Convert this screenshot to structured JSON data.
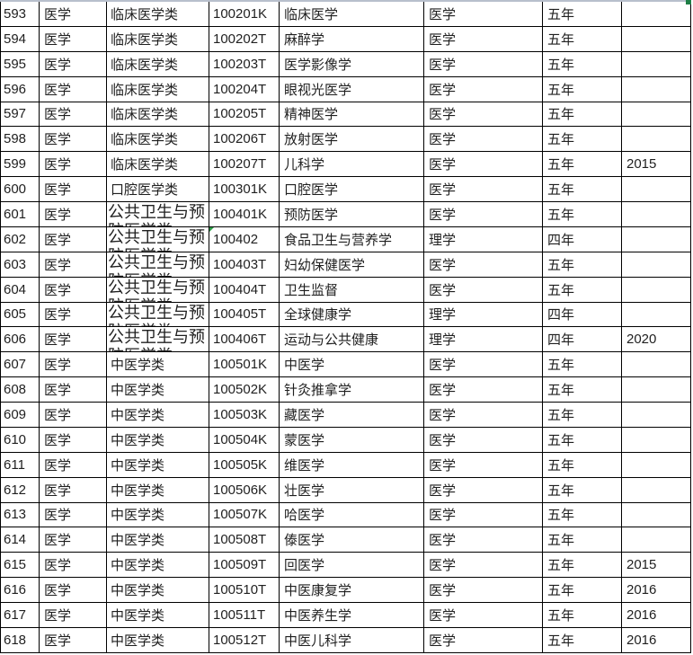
{
  "app": {
    "context": "spreadsheet-grid-excerpt"
  },
  "colors": {
    "background": "#ffffff",
    "grid_line": "#000000",
    "text": "#1f1f1f",
    "selection_edge_line": "#b8bfcc",
    "fill_handle_green": "#1e7e45",
    "error_indicator_green": "#2f9e49"
  },
  "table": {
    "columns": [
      {
        "name": "row-number",
        "width": 43
      },
      {
        "name": "discipline",
        "width": 75
      },
      {
        "name": "category",
        "width": 114
      },
      {
        "name": "major-code",
        "width": 78
      },
      {
        "name": "major-name",
        "width": 161
      },
      {
        "name": "degree-type",
        "width": 132
      },
      {
        "name": "duration",
        "width": 88
      },
      {
        "name": "year-added",
        "width": 77
      }
    ],
    "rows": [
      {
        "num": "593",
        "discipline": "医学",
        "category": "临床医学类",
        "code": "100201K",
        "major": "临床医学",
        "degree": "医学",
        "duration": "五年",
        "year": ""
      },
      {
        "num": "594",
        "discipline": "医学",
        "category": "临床医学类",
        "code": "100202T",
        "major": "麻醉学",
        "degree": "医学",
        "duration": "五年",
        "year": ""
      },
      {
        "num": "595",
        "discipline": "医学",
        "category": "临床医学类",
        "code": "100203T",
        "major": "医学影像学",
        "degree": "医学",
        "duration": "五年",
        "year": ""
      },
      {
        "num": "596",
        "discipline": "医学",
        "category": "临床医学类",
        "code": "100204T",
        "major": "眼视光医学",
        "degree": "医学",
        "duration": "五年",
        "year": ""
      },
      {
        "num": "597",
        "discipline": "医学",
        "category": "临床医学类",
        "code": "100205T",
        "major": "精神医学",
        "degree": "医学",
        "duration": "五年",
        "year": ""
      },
      {
        "num": "598",
        "discipline": "医学",
        "category": "临床医学类",
        "code": "100206T",
        "major": "放射医学",
        "degree": "医学",
        "duration": "五年",
        "year": ""
      },
      {
        "num": "599",
        "discipline": "医学",
        "category": "临床医学类",
        "code": "100207T",
        "major": "儿科学",
        "degree": "医学",
        "duration": "五年",
        "year": "2015"
      },
      {
        "num": "600",
        "discipline": "医学",
        "category": "口腔医学类",
        "code": "100301K",
        "major": "口腔医学",
        "degree": "医学",
        "duration": "五年",
        "year": ""
      },
      {
        "num": "601",
        "discipline": "医学",
        "category": "公共卫生与预",
        "category_full": "公共卫生与预防医学类",
        "category_large": true,
        "code": "100401K",
        "major": "预防医学",
        "degree": "医学",
        "duration": "五年",
        "year": ""
      },
      {
        "num": "602",
        "discipline": "医学",
        "category": "公共卫生与预",
        "category_full": "公共卫生与预防医学类",
        "category_large": true,
        "code": "100402",
        "code_flag": true,
        "major": "食品卫生与营养学",
        "degree": "理学",
        "duration": "四年",
        "year": ""
      },
      {
        "num": "603",
        "discipline": "医学",
        "category": "公共卫生与预",
        "category_full": "公共卫生与预防医学类",
        "category_large": true,
        "code": "100403T",
        "major": "妇幼保健医学",
        "degree": "医学",
        "duration": "五年",
        "year": ""
      },
      {
        "num": "604",
        "discipline": "医学",
        "category": "公共卫生与预",
        "category_full": "公共卫生与预防医学类",
        "category_large": true,
        "code": "100404T",
        "major": "卫生监督",
        "degree": "医学",
        "duration": "五年",
        "year": ""
      },
      {
        "num": "605",
        "discipline": "医学",
        "category": "公共卫生与预",
        "category_full": "公共卫生与预防医学类",
        "category_large": true,
        "code": "100405T",
        "major": "全球健康学",
        "degree": "理学",
        "duration": "四年",
        "year": ""
      },
      {
        "num": "606",
        "discipline": "医学",
        "category": "公共卫生与预",
        "category_full": "公共卫生与预防医学类",
        "category_large": true,
        "code": "100406T",
        "major": "运动与公共健康",
        "degree": "理学",
        "duration": "四年",
        "year": "2020"
      },
      {
        "num": "607",
        "discipline": "医学",
        "category": "中医学类",
        "code": "100501K",
        "major": "中医学",
        "degree": "医学",
        "duration": "五年",
        "year": ""
      },
      {
        "num": "608",
        "discipline": "医学",
        "category": "中医学类",
        "code": "100502K",
        "major": "针灸推拿学",
        "degree": "医学",
        "duration": "五年",
        "year": ""
      },
      {
        "num": "609",
        "discipline": "医学",
        "category": "中医学类",
        "code": "100503K",
        "major": "藏医学",
        "degree": "医学",
        "duration": "五年",
        "year": ""
      },
      {
        "num": "610",
        "discipline": "医学",
        "category": "中医学类",
        "code": "100504K",
        "major": "蒙医学",
        "degree": "医学",
        "duration": "五年",
        "year": ""
      },
      {
        "num": "611",
        "discipline": "医学",
        "category": "中医学类",
        "code": "100505K",
        "major": "维医学",
        "degree": "医学",
        "duration": "五年",
        "year": ""
      },
      {
        "num": "612",
        "discipline": "医学",
        "category": "中医学类",
        "code": "100506K",
        "major": "壮医学",
        "degree": "医学",
        "duration": "五年",
        "year": ""
      },
      {
        "num": "613",
        "discipline": "医学",
        "category": "中医学类",
        "code": "100507K",
        "major": "哈医学",
        "degree": "医学",
        "duration": "五年",
        "year": ""
      },
      {
        "num": "614",
        "discipline": "医学",
        "category": "中医学类",
        "code": "100508T",
        "major": "傣医学",
        "degree": "医学",
        "duration": "五年",
        "year": ""
      },
      {
        "num": "615",
        "discipline": "医学",
        "category": "中医学类",
        "code": "100509T",
        "major": "回医学",
        "degree": "医学",
        "duration": "五年",
        "year": "2015"
      },
      {
        "num": "616",
        "discipline": "医学",
        "category": "中医学类",
        "code": "100510T",
        "major": "中医康复学",
        "degree": "医学",
        "duration": "五年",
        "year": "2016"
      },
      {
        "num": "617",
        "discipline": "医学",
        "category": "中医学类",
        "code": "100511T",
        "major": "中医养生学",
        "degree": "医学",
        "duration": "五年",
        "year": "2016"
      },
      {
        "num": "618",
        "discipline": "医学",
        "category": "中医学类",
        "code": "100512T",
        "major": "中医儿科学",
        "degree": "医学",
        "duration": "五年",
        "year": "2016"
      }
    ]
  }
}
